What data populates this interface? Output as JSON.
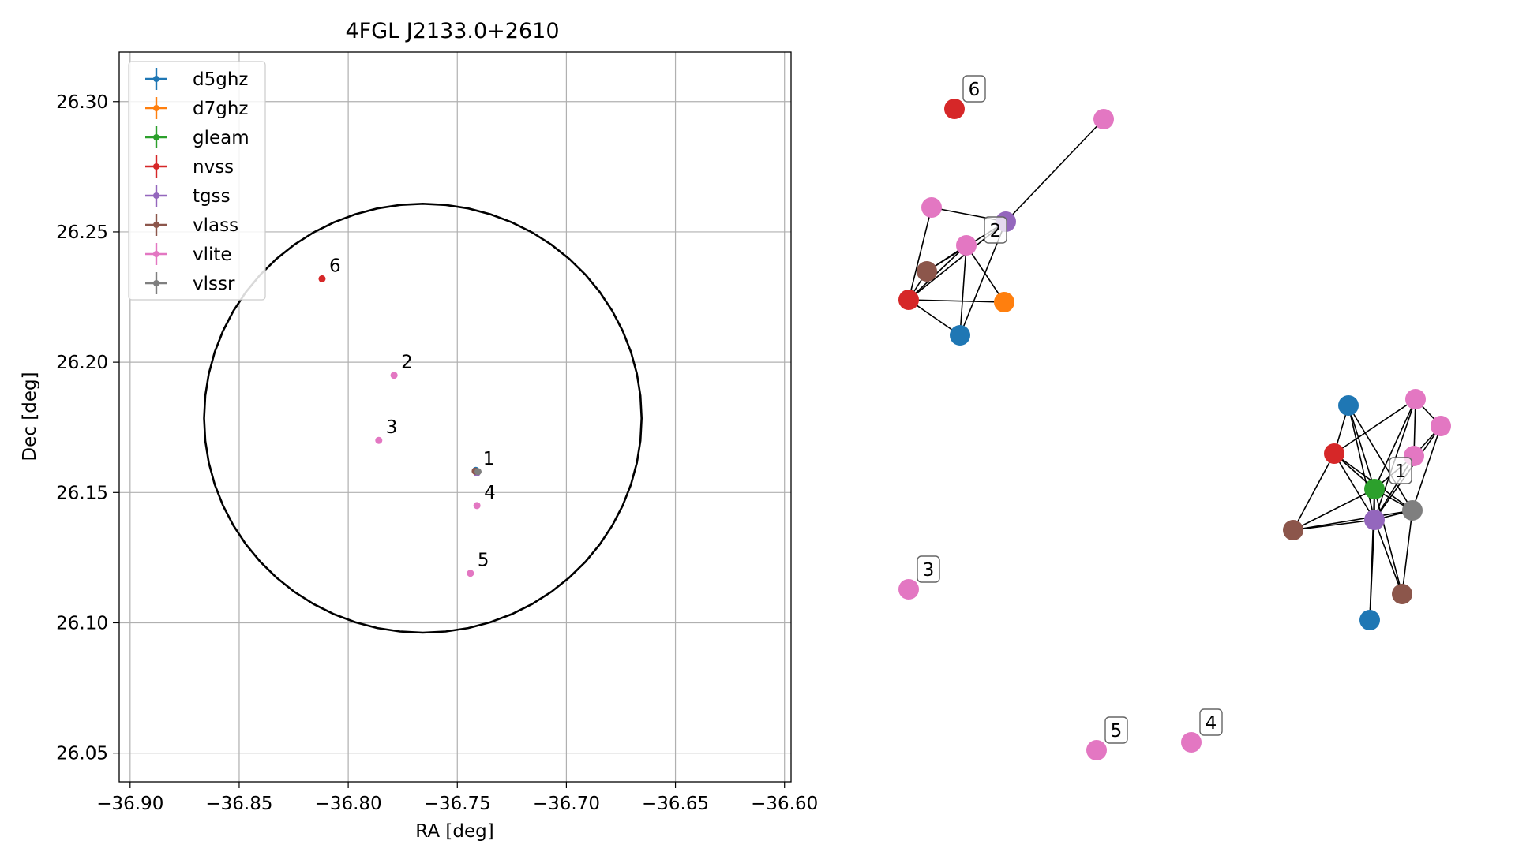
{
  "chart_data": [
    {
      "type": "scatter",
      "title": "4FGL J2133.0+2610",
      "xlabel": "RA [deg]",
      "ylabel": "Dec [deg]",
      "xlim": [
        -36.905,
        -36.597
      ],
      "ylim": [
        26.039,
        26.319
      ],
      "xticks": [
        -36.9,
        -36.85,
        -36.8,
        -36.75,
        -36.7,
        -36.65,
        -36.6
      ],
      "xtick_labels": [
        "−36.90",
        "−36.85",
        "−36.80",
        "−36.75",
        "−36.70",
        "−36.65",
        "−36.60"
      ],
      "yticks": [
        26.05,
        26.1,
        26.15,
        26.2,
        26.25,
        26.3
      ],
      "ytick_labels": [
        "26.05",
        "26.10",
        "26.15",
        "26.20",
        "26.25",
        "26.30"
      ],
      "grid": true,
      "legend_position": "top-left",
      "series": [
        {
          "name": "d5ghz",
          "color": "#1f77b4",
          "x": [
            -36.7415
          ],
          "y": [
            26.1585
          ]
        },
        {
          "name": "d7ghz",
          "color": "#ff7f0e",
          "x": [
            -36.7415
          ],
          "y": [
            26.158
          ]
        },
        {
          "name": "gleam",
          "color": "#2ca02c",
          "x": [
            -36.741
          ],
          "y": [
            26.158
          ]
        },
        {
          "name": "nvss",
          "color": "#d62728",
          "x": [
            -36.812,
            -36.7415
          ],
          "y": [
            26.232,
            26.158
          ]
        },
        {
          "name": "tgss",
          "color": "#9467bd",
          "x": [
            -36.741
          ],
          "y": [
            26.1575
          ]
        },
        {
          "name": "vlass",
          "color": "#8c564b",
          "x": [
            -36.7418
          ],
          "y": [
            26.1582
          ]
        },
        {
          "name": "vlite",
          "color": "#e377c2",
          "x": [
            -36.779,
            -36.786,
            -36.741,
            -36.744
          ],
          "y": [
            26.195,
            26.17,
            26.145,
            26.119
          ]
        },
        {
          "name": "vlssr",
          "color": "#7f7f7f",
          "x": [
            -36.7405
          ],
          "y": [
            26.158
          ]
        }
      ],
      "annotations": [
        {
          "text": "1",
          "x": -36.7415,
          "y": 26.158
        },
        {
          "text": "2",
          "x": -36.779,
          "y": 26.195
        },
        {
          "text": "3",
          "x": -36.786,
          "y": 26.17
        },
        {
          "text": "4",
          "x": -36.741,
          "y": 26.145
        },
        {
          "text": "5",
          "x": -36.744,
          "y": 26.119
        },
        {
          "text": "6",
          "x": -36.812,
          "y": 26.232
        }
      ],
      "ellipse": {
        "center": [
          -36.7658,
          26.1785
        ],
        "ra_semi_axis": 0.1003,
        "dec_semi_axis": 0.0823,
        "color": "#000000"
      }
    },
    {
      "type": "network",
      "cluster_labels": [
        "1",
        "2",
        "3",
        "4",
        "5",
        "6"
      ],
      "nodes": [
        {
          "catalog": "nvss",
          "color": "#d62728",
          "label": "6"
        },
        {
          "catalog": "vlite",
          "color": "#e377c2"
        },
        {
          "catalog": "vlite",
          "color": "#e377c2"
        },
        {
          "catalog": "tgss",
          "color": "#9467bd"
        },
        {
          "catalog": "vlite",
          "color": "#e377c2",
          "label": "2"
        },
        {
          "catalog": "vlass",
          "color": "#8c564b"
        },
        {
          "catalog": "nvss",
          "color": "#d62728"
        },
        {
          "catalog": "d7ghz",
          "color": "#ff7f0e"
        },
        {
          "catalog": "d5ghz",
          "color": "#1f77b4"
        },
        {
          "catalog": "d5ghz",
          "color": "#1f77b4"
        },
        {
          "catalog": "vlite",
          "color": "#e377c2"
        },
        {
          "catalog": "vlite",
          "color": "#e377c2"
        },
        {
          "catalog": "nvss",
          "color": "#d62728"
        },
        {
          "catalog": "vlite",
          "color": "#e377c2"
        },
        {
          "catalog": "gleam",
          "color": "#2ca02c",
          "label": "1"
        },
        {
          "catalog": "vlssr",
          "color": "#7f7f7f"
        },
        {
          "catalog": "tgss",
          "color": "#9467bd"
        },
        {
          "catalog": "vlass",
          "color": "#8c564b"
        },
        {
          "catalog": "vlass",
          "color": "#8c564b"
        },
        {
          "catalog": "d5ghz",
          "color": "#1f77b4"
        },
        {
          "catalog": "vlite",
          "color": "#e377c2",
          "label": "3"
        },
        {
          "catalog": "vlite",
          "color": "#e377c2",
          "label": "5"
        },
        {
          "catalog": "vlite",
          "color": "#e377c2",
          "label": "4"
        }
      ],
      "edges": [
        [
          1,
          3
        ],
        [
          2,
          3
        ],
        [
          2,
          6
        ],
        [
          3,
          5
        ],
        [
          3,
          6
        ],
        [
          3,
          8
        ],
        [
          4,
          5
        ],
        [
          4,
          6
        ],
        [
          4,
          7
        ],
        [
          4,
          8
        ],
        [
          5,
          6
        ],
        [
          6,
          7
        ],
        [
          6,
          8
        ],
        [
          9,
          12
        ],
        [
          9,
          14
        ],
        [
          9,
          16
        ],
        [
          9,
          15
        ],
        [
          10,
          14
        ],
        [
          10,
          16
        ],
        [
          10,
          11
        ],
        [
          10,
          13
        ],
        [
          10,
          12
        ],
        [
          11,
          16
        ],
        [
          11,
          15
        ],
        [
          11,
          13
        ],
        [
          12,
          17
        ],
        [
          12,
          14
        ],
        [
          12,
          16
        ],
        [
          12,
          15
        ],
        [
          13,
          14
        ],
        [
          13,
          16
        ],
        [
          14,
          17
        ],
        [
          14,
          16
        ],
        [
          14,
          15
        ],
        [
          14,
          18
        ],
        [
          14,
          19
        ],
        [
          15,
          16
        ],
        [
          15,
          17
        ],
        [
          15,
          18
        ],
        [
          16,
          17
        ],
        [
          16,
          18
        ],
        [
          16,
          19
        ]
      ]
    }
  ]
}
